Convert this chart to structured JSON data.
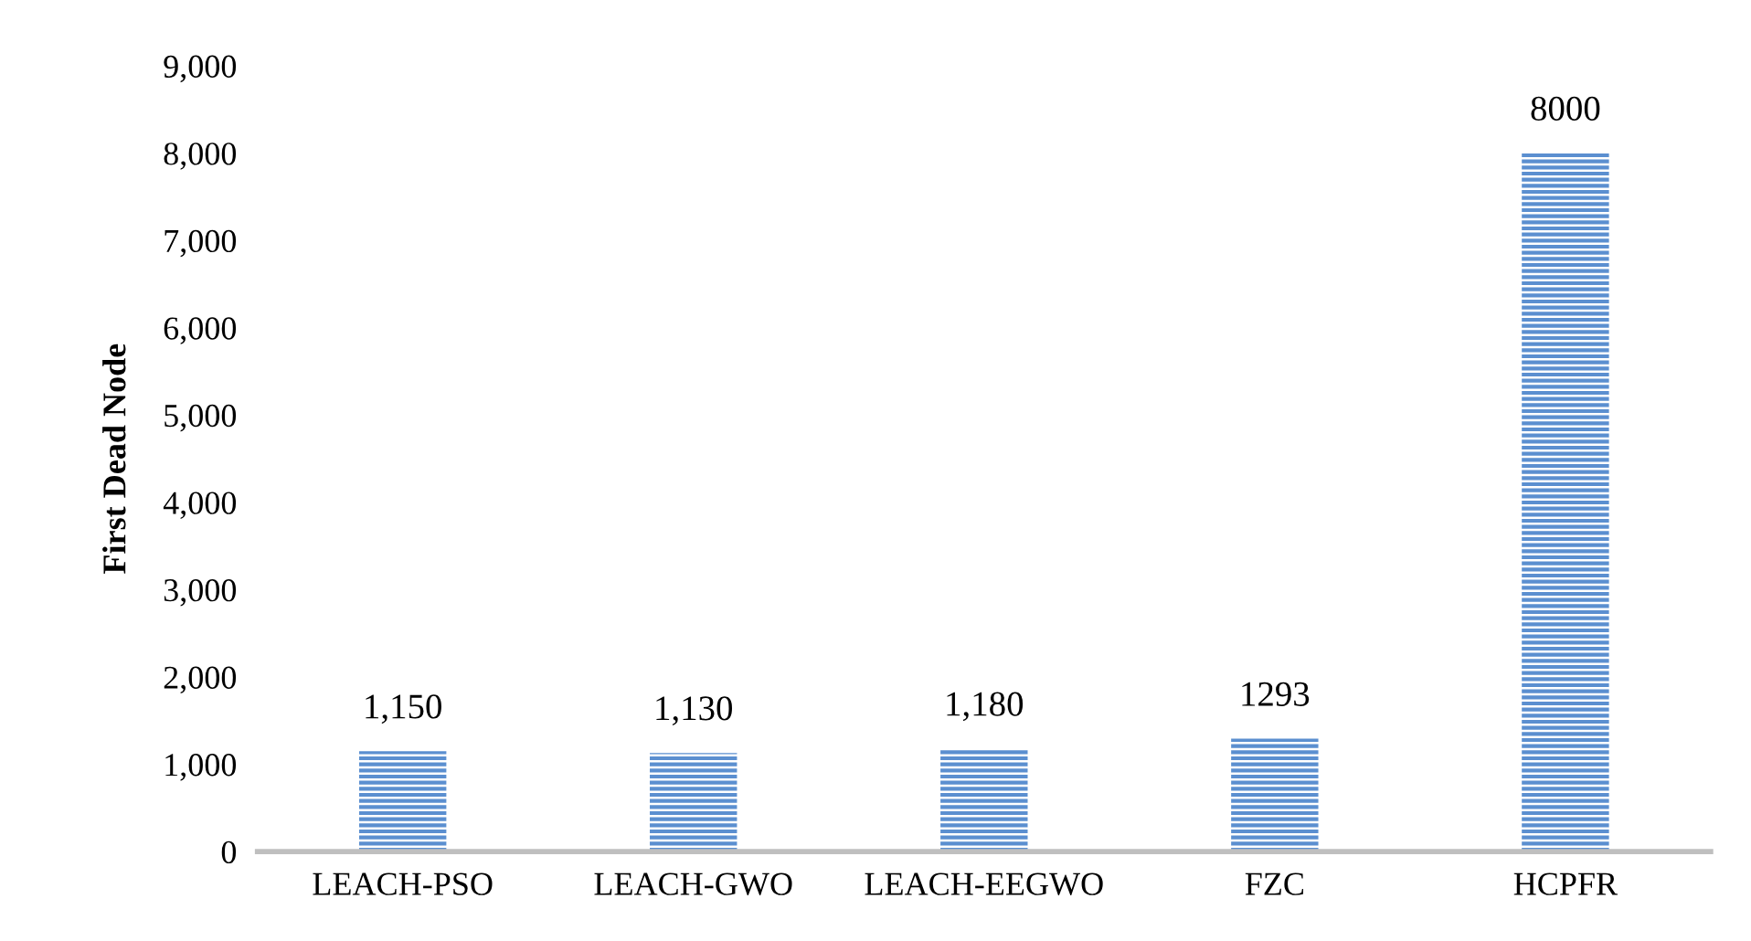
{
  "chart_data": {
    "type": "bar",
    "ylabel": "First Dead Node",
    "categories": [
      "LEACH-PSO",
      "LEACH-GWO",
      "LEACH-EEGWO",
      "FZC",
      "HCPFR"
    ],
    "values": [
      1150,
      1130,
      1180,
      1293,
      8000
    ],
    "value_labels": [
      "1,150",
      "1,130",
      "1,180",
      "1293",
      "8000"
    ],
    "color": "#5b8fd0",
    "ylim": [
      0,
      9000
    ],
    "yticks": [
      0,
      {
        "value": 1000,
        "label": "1,000"
      },
      {
        "value": 2000,
        "label": "2,000"
      },
      {
        "value": 3000,
        "label": "3,000"
      },
      {
        "value": 4000,
        "label": "4,000"
      },
      {
        "value": 5000,
        "label": "5,000"
      },
      {
        "value": 6000,
        "label": "6,000"
      },
      {
        "value": 7000,
        "label": "7,000"
      },
      {
        "value": 8000,
        "label": "8,000"
      },
      {
        "value": 9000,
        "label": "9,000"
      }
    ],
    "grid": false,
    "legend": false
  }
}
